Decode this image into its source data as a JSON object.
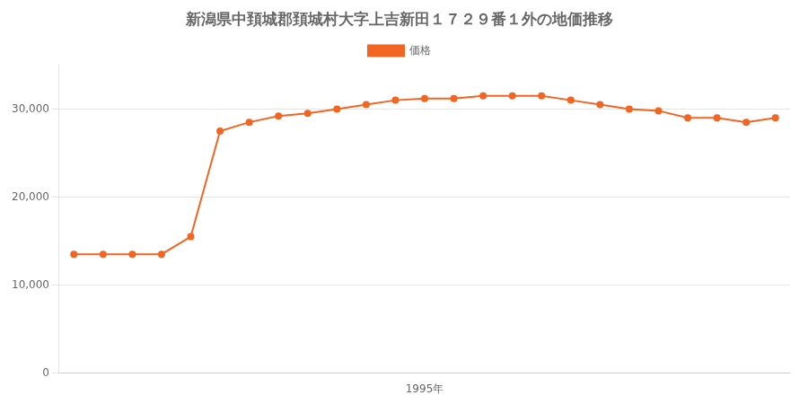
{
  "chart_data": {
    "type": "line",
    "title": "新潟県中頚城郡頚城村大字上吉新田１７２９番１外の地価推移",
    "x": [
      1983,
      1984,
      1985,
      1986,
      1987,
      1988,
      1989,
      1990,
      1991,
      1992,
      1993,
      1994,
      1995,
      1996,
      1997,
      1998,
      1999,
      2000,
      2001,
      2002,
      2003,
      2004,
      2005,
      2006,
      2007
    ],
    "series": [
      {
        "name": "価格",
        "color": "#f26522",
        "marker": "circle",
        "values": [
          13500,
          13500,
          13500,
          13500,
          15500,
          27500,
          28500,
          29200,
          29500,
          30000,
          30500,
          31000,
          31200,
          31200,
          31500,
          31500,
          31500,
          31000,
          30500,
          30000,
          29800,
          29000,
          29000,
          28500,
          29000
        ]
      }
    ],
    "xlim": [
      1982.5,
      2007.5
    ],
    "xticks": [
      {
        "value": 1995,
        "label": "1995年"
      }
    ],
    "ylim": [
      0,
      35000
    ],
    "yticks": [
      0,
      {
        "value": 10000,
        "label": "10,000"
      },
      {
        "value": 20000,
        "label": "20,000"
      },
      {
        "value": 30000,
        "label": "30,000"
      }
    ],
    "grid": "y",
    "legend": "top"
  }
}
